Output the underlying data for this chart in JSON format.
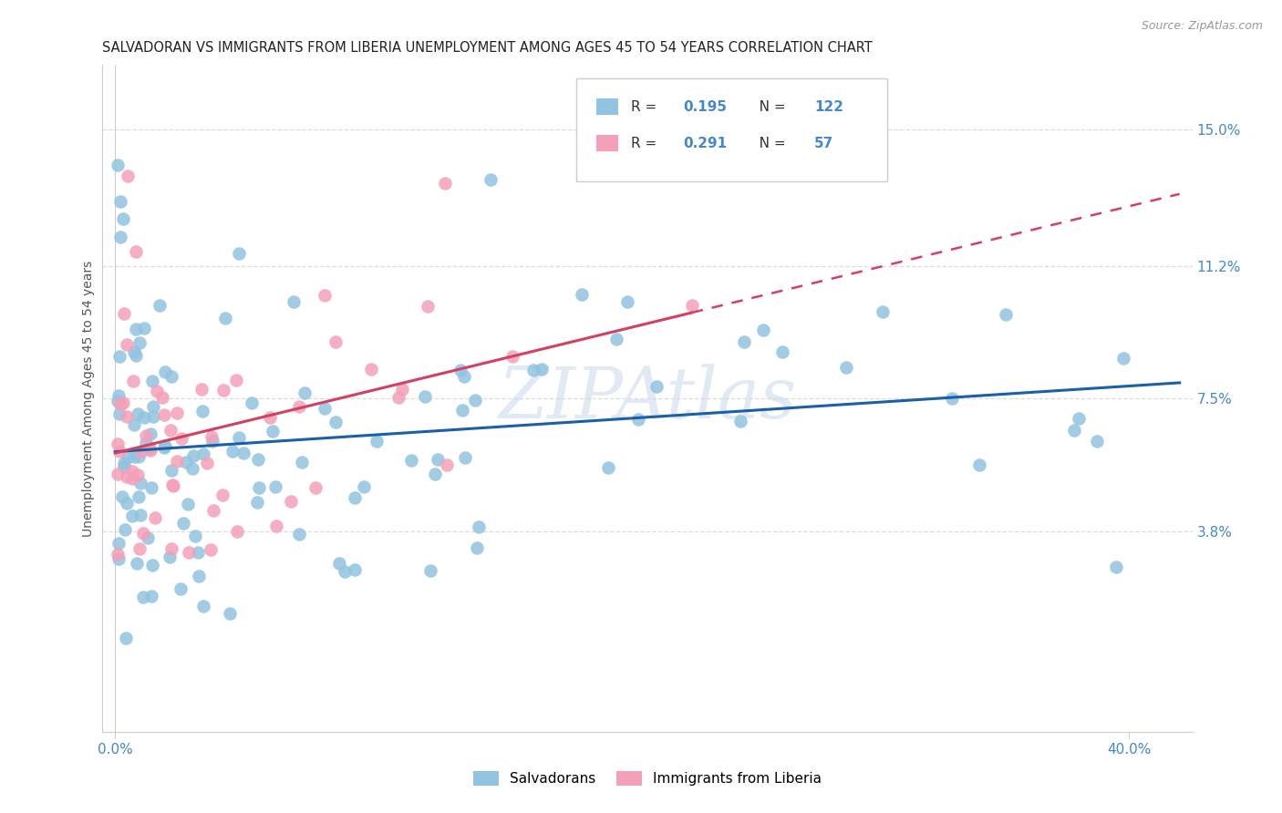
{
  "title": "SALVADORAN VS IMMIGRANTS FROM LIBERIA UNEMPLOYMENT AMONG AGES 45 TO 54 YEARS CORRELATION CHART",
  "source": "Source: ZipAtlas.com",
  "ylabel": "Unemployment Among Ages 45 to 54 years",
  "y_tick_labels": [
    "3.8%",
    "7.5%",
    "11.2%",
    "15.0%"
  ],
  "y_tick_values": [
    0.038,
    0.075,
    0.112,
    0.15
  ],
  "xlim": [
    -0.005,
    0.425
  ],
  "ylim": [
    -0.018,
    0.168
  ],
  "R_salvadoran": "0.195",
  "N_salvadoran": "122",
  "R_liberia": "0.291",
  "N_liberia": "57",
  "color_salvadoran": "#91C4E0",
  "color_liberia": "#F4A0B8",
  "trend_color_salvadoran": "#1A5FA8",
  "trend_color_liberia": "#D44060",
  "watermark": "ZIPAtlas",
  "background_color": "#FFFFFF",
  "grid_color": "#DDDDDD",
  "tick_label_color": "#4488CC"
}
